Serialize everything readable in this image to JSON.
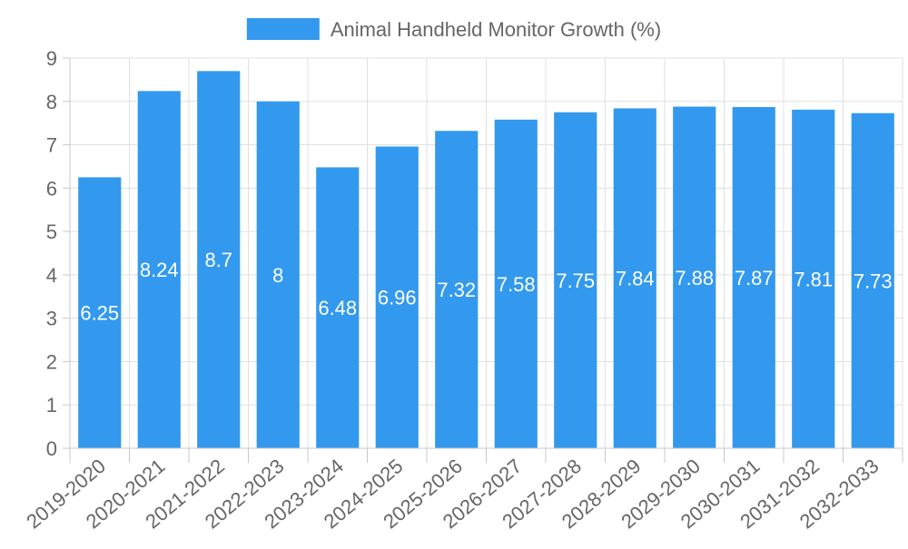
{
  "chart_data": {
    "type": "bar",
    "title": "",
    "xlabel": "",
    "ylabel": "",
    "ylim": [
      0,
      9
    ],
    "y_ticks": [
      0,
      1,
      2,
      3,
      4,
      5,
      6,
      7,
      8,
      9
    ],
    "grid": true,
    "legend_position": "top-center",
    "categories": [
      "2019-2020",
      "2020-2021",
      "2021-2022",
      "2022-2023",
      "2023-2024",
      "2024-2025",
      "2025-2026",
      "2026-2027",
      "2027-2028",
      "2028-2029",
      "2029-2030",
      "2030-2031",
      "2031-2032",
      "2032-2033"
    ],
    "series": [
      {
        "name": "Animal Handheld Monitor Growth (%)",
        "color": "#3399ee",
        "values": [
          6.25,
          8.24,
          8.7,
          8,
          6.48,
          6.96,
          7.32,
          7.58,
          7.75,
          7.84,
          7.88,
          7.87,
          7.81,
          7.73
        ],
        "labels": [
          "6.25",
          "8.24",
          "8.7",
          "8",
          "6.48",
          "6.96",
          "7.32",
          "7.58",
          "7.75",
          "7.84",
          "7.88",
          "7.87",
          "7.81",
          "7.73"
        ]
      }
    ]
  }
}
